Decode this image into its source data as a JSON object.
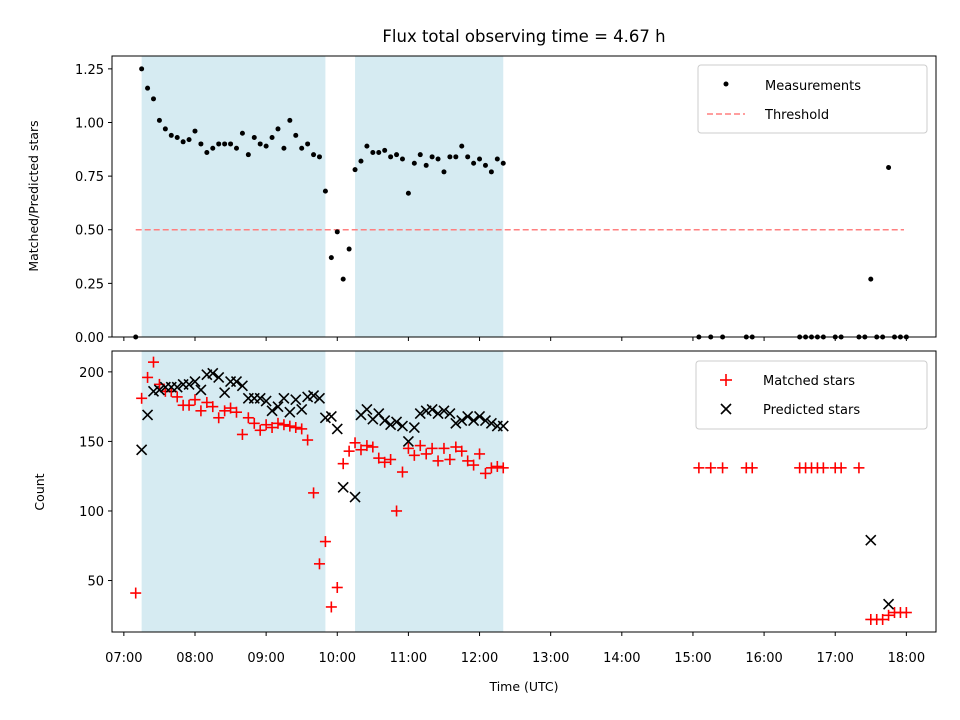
{
  "figure": {
    "title": "Flux total observing time = 4.67 h",
    "xlabel": "Time (UTC)",
    "x_ticks": [
      "07:00",
      "08:00",
      "09:00",
      "10:00",
      "11:00",
      "12:00",
      "13:00",
      "14:00",
      "15:00",
      "16:00",
      "17:00",
      "18:00"
    ]
  },
  "chart_data": [
    {
      "type": "scatter",
      "title": "Flux total observing time = 4.67 h",
      "ylabel": "Matched/Predicted stars",
      "xlim": [
        "06:50",
        "18:25"
      ],
      "ylim": [
        0,
        1.31
      ],
      "yticks": [
        "0.00",
        "0.25",
        "0.50",
        "0.75",
        "1.00",
        "1.25"
      ],
      "legend_position": "top-right",
      "shaded_intervals": [
        [
          "07:15",
          "09:50"
        ],
        [
          "10:15",
          "12:20"
        ]
      ],
      "threshold": {
        "name": "Threshold",
        "y": 0.5,
        "x_range": [
          "07:10",
          "17:58"
        ],
        "color": "#ff7f7f"
      },
      "series": [
        {
          "name": "Measurements",
          "color": "#000000",
          "x": [
            "07:10",
            "07:15",
            "07:20",
            "07:25",
            "07:30",
            "07:35",
            "07:40",
            "07:45",
            "07:50",
            "07:55",
            "08:00",
            "08:05",
            "08:10",
            "08:15",
            "08:20",
            "08:25",
            "08:30",
            "08:35",
            "08:40",
            "08:45",
            "08:50",
            "08:55",
            "09:00",
            "09:05",
            "09:10",
            "09:15",
            "09:20",
            "09:25",
            "09:30",
            "09:35",
            "09:40",
            "09:45",
            "09:50",
            "09:55",
            "10:00",
            "10:05",
            "10:10",
            "10:15",
            "10:20",
            "10:25",
            "10:30",
            "10:35",
            "10:40",
            "10:45",
            "10:50",
            "10:55",
            "11:00",
            "11:05",
            "11:10",
            "11:15",
            "11:20",
            "11:25",
            "11:30",
            "11:35",
            "11:40",
            "11:45",
            "11:50",
            "11:55",
            "12:00",
            "12:05",
            "12:10",
            "12:15",
            "12:20",
            "15:05",
            "15:15",
            "15:25",
            "15:45",
            "15:50",
            "16:30",
            "16:35",
            "16:40",
            "16:45",
            "16:50",
            "17:00",
            "17:05",
            "17:20",
            "17:25",
            "17:35",
            "17:40",
            "17:50",
            "17:55",
            "18:00",
            "17:30",
            "17:45"
          ],
          "y": [
            0,
            1.25,
            1.16,
            1.11,
            1.01,
            0.97,
            0.94,
            0.93,
            0.91,
            0.92,
            0.96,
            0.9,
            0.86,
            0.88,
            0.9,
            0.9,
            0.9,
            0.88,
            0.95,
            0.85,
            0.93,
            0.9,
            0.89,
            0.93,
            0.97,
            0.88,
            1.01,
            0.94,
            0.88,
            0.9,
            0.85,
            0.84,
            0.68,
            0.37,
            0.49,
            0.27,
            0.41,
            0.78,
            0.82,
            0.89,
            0.86,
            0.86,
            0.87,
            0.84,
            0.85,
            0.83,
            0.67,
            0.81,
            0.85,
            0.8,
            0.84,
            0.83,
            0.77,
            0.84,
            0.84,
            0.89,
            0.84,
            0.81,
            0.83,
            0.8,
            0.77,
            0.83,
            0.81,
            0,
            0,
            0,
            0,
            0,
            0,
            0,
            0,
            0,
            0,
            0,
            0,
            0,
            0,
            0,
            0,
            0,
            0,
            0,
            0.27,
            0.79
          ]
        }
      ]
    },
    {
      "type": "scatter",
      "ylabel": "Count",
      "xlabel": "Time (UTC)",
      "xlim": [
        "06:50",
        "18:25"
      ],
      "ylim": [
        13,
        215
      ],
      "yticks": [
        "50",
        "100",
        "150",
        "200"
      ],
      "legend_position": "top-right",
      "shaded_intervals": [
        [
          "07:15",
          "09:50"
        ],
        [
          "10:15",
          "12:20"
        ]
      ],
      "series": [
        {
          "name": "Matched stars",
          "color": "#ff0000",
          "marker": "plus",
          "x": [
            "07:10",
            "07:15",
            "07:20",
            "07:25",
            "07:30",
            "07:35",
            "07:40",
            "07:45",
            "07:50",
            "07:55",
            "08:00",
            "08:05",
            "08:10",
            "08:15",
            "08:20",
            "08:25",
            "08:30",
            "08:35",
            "08:40",
            "08:45",
            "08:50",
            "08:55",
            "09:00",
            "09:05",
            "09:10",
            "09:15",
            "09:20",
            "09:25",
            "09:30",
            "09:35",
            "09:40",
            "09:45",
            "09:50",
            "09:55",
            "10:00",
            "10:05",
            "10:10",
            "10:15",
            "10:20",
            "10:25",
            "10:30",
            "10:35",
            "10:40",
            "10:45",
            "10:50",
            "10:55",
            "11:00",
            "11:05",
            "11:10",
            "11:15",
            "11:20",
            "11:25",
            "11:30",
            "11:35",
            "11:40",
            "11:45",
            "11:50",
            "11:55",
            "12:00",
            "12:05",
            "12:10",
            "12:15",
            "12:20",
            "15:05",
            "15:15",
            "15:25",
            "15:45",
            "15:50",
            "16:30",
            "16:35",
            "16:40",
            "16:45",
            "16:50",
            "17:00",
            "17:05",
            "17:20",
            "17:30",
            "17:35",
            "17:40",
            "17:45",
            "17:50",
            "17:55",
            "18:00"
          ],
          "y": [
            41,
            181,
            196,
            207,
            191,
            186,
            186,
            182,
            176,
            176,
            180,
            172,
            178,
            175,
            167,
            172,
            174,
            171,
            155,
            167,
            163,
            158,
            162,
            160,
            163,
            162,
            161,
            160,
            159,
            151,
            113,
            62,
            78,
            31,
            45,
            134,
            143,
            149,
            144,
            147,
            146,
            138,
            135,
            137,
            100,
            128,
            145,
            140,
            147,
            141,
            145,
            136,
            145,
            137,
            146,
            143,
            136,
            133,
            141,
            127,
            131,
            132,
            131,
            131,
            131,
            131,
            131,
            131,
            131,
            131,
            131,
            131,
            131,
            131,
            131,
            131,
            22,
            22,
            22,
            25,
            27,
            27,
            27
          ]
        },
        {
          "name": "Predicted stars",
          "color": "#000000",
          "marker": "x",
          "x": [
            "07:15",
            "07:20",
            "07:25",
            "07:30",
            "07:35",
            "07:40",
            "07:45",
            "07:50",
            "07:55",
            "08:00",
            "08:05",
            "08:10",
            "08:15",
            "08:20",
            "08:25",
            "08:30",
            "08:35",
            "08:40",
            "08:45",
            "08:50",
            "08:55",
            "09:00",
            "09:05",
            "09:10",
            "09:15",
            "09:20",
            "09:25",
            "09:30",
            "09:35",
            "09:40",
            "09:45",
            "09:50",
            "09:55",
            "10:00",
            "10:05",
            "10:15",
            "10:20",
            "10:25",
            "10:30",
            "10:35",
            "10:40",
            "10:45",
            "10:50",
            "10:55",
            "11:00",
            "11:05",
            "11:10",
            "11:15",
            "11:20",
            "11:25",
            "11:30",
            "11:35",
            "11:40",
            "11:45",
            "11:50",
            "11:55",
            "12:00",
            "12:05",
            "12:10",
            "12:15",
            "12:20",
            "17:30",
            "17:45"
          ],
          "y": [
            144,
            169,
            186,
            187,
            189,
            189,
            189,
            191,
            191,
            193,
            187,
            198,
            199,
            196,
            185,
            193,
            193,
            190,
            181,
            181,
            181,
            179,
            172,
            175,
            181,
            171,
            180,
            173,
            182,
            183,
            181,
            167,
            168,
            159,
            117,
            110,
            169,
            173,
            166,
            170,
            165,
            162,
            164,
            161,
            150,
            160,
            170,
            172,
            173,
            170,
            172,
            170,
            163,
            165,
            168,
            165,
            168,
            165,
            163,
            161,
            161,
            79,
            33
          ]
        }
      ]
    }
  ]
}
